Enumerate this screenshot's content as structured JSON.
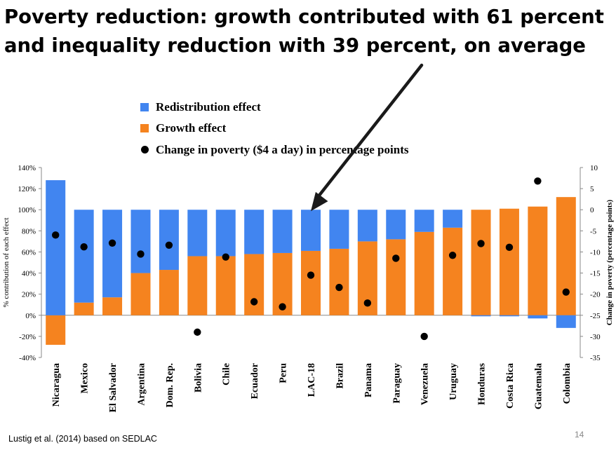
{
  "title": "Poverty reduction: growth contributed with 61 percent and inequality reduction with 39 percent, on average",
  "footer": "Lustig et al. (2014) based on SEDLAC",
  "page_number": "14",
  "colors": {
    "redistribution": "#4185F0",
    "growth": "#F5831F",
    "poverty": "#000000",
    "arrow": "#1a1a1a"
  },
  "chart_data": {
    "type": "bar",
    "stacked": true,
    "legend_position": "top-left",
    "grid": false,
    "ylabel": "% contribution of each effect",
    "y2label": "Change in poverty (percentage points)",
    "ylim": [
      -40,
      140
    ],
    "y2lim": [
      -35,
      10
    ],
    "yticks": [
      "140%",
      "120%",
      "100%",
      "80%",
      "60%",
      "40%",
      "20%",
      "0%",
      "-20%",
      "-40%"
    ],
    "y2ticks": [
      "10",
      "5",
      "0",
      "-5",
      "-10",
      "-15",
      "-20",
      "-25",
      "-30",
      "-35"
    ],
    "categories": [
      "Nicaragua",
      "Mexico",
      "El Salvador",
      "Argentina",
      "Dom. Rep.",
      "Bolivia",
      "Chile",
      "Ecuador",
      "Peru",
      "LAC-18",
      "Brazil",
      "Panama",
      "Paraguay",
      "Venezuela",
      "Uruguay",
      "Honduras",
      "Costa Rica",
      "Guatemala",
      "Colombia"
    ],
    "series": [
      {
        "name": "Redistribution effect",
        "values": [
          128,
          88,
          83,
          60,
          57,
          44,
          44,
          42,
          41,
          39,
          37,
          30,
          28,
          21,
          17,
          -1,
          -1,
          -3,
          -12
        ]
      },
      {
        "name": "Growth effect",
        "values": [
          -28,
          12,
          17,
          40,
          43,
          56,
          56,
          58,
          59,
          61,
          63,
          70,
          72,
          79,
          83,
          100,
          101,
          103,
          112
        ]
      },
      {
        "name": "Change in poverty ($4 a day) in percentage points",
        "type": "scatter",
        "axis": "right",
        "values": [
          -6,
          -8.8,
          -7.9,
          -10.5,
          -8.4,
          -29,
          -11.2,
          -21.8,
          -23,
          -15.5,
          -18.4,
          -22.1,
          -11.5,
          -30,
          -10.8,
          -8,
          -8.9,
          6.8,
          -19.5
        ]
      }
    ],
    "annotations": [
      {
        "type": "arrow",
        "target": "LAC-18"
      }
    ]
  }
}
